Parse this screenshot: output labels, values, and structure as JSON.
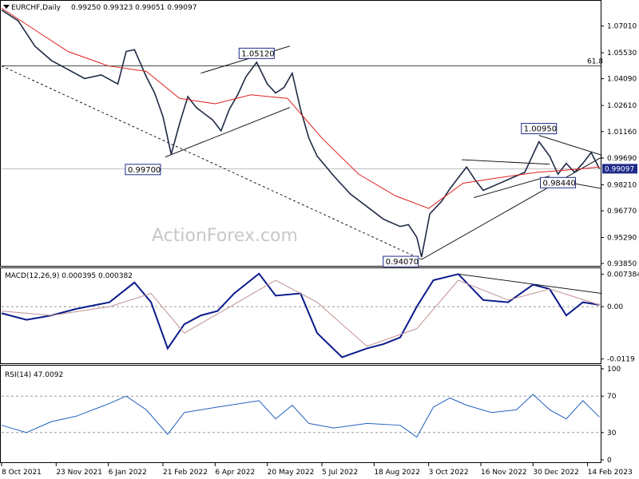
{
  "header": {
    "symbol": "EURCHF,Daily",
    "ohlc": "0.99250 0.99323 0.99051 0.99097"
  },
  "watermark": "ActionForex.com",
  "colors": {
    "price": "#1f2a44",
    "sma": "#e02020",
    "macd": "#0a1a8a",
    "signal": "#c09090",
    "rsi": "#2060c0",
    "last_box": "#1f2a8a"
  },
  "chart_data": [
    {
      "type": "line",
      "panel": "price",
      "ylim": [
        0.9385,
        1.081
      ],
      "y_ticks": [
        "1.07010",
        "1.05530",
        "1.04090",
        "1.02610",
        "1.01160",
        "0.99690",
        "0.98210",
        "0.96770",
        "0.95290",
        "0.93850"
      ],
      "x_tick_labels": [
        "8 Oct 2021",
        "23 Nov 2021",
        "6 Jan 2022",
        "21 Feb 2022",
        "6 Apr 2022",
        "20 May 2022",
        "5 Jul 2022",
        "18 Aug 2022",
        "3 Oct 2022",
        "16 Nov 2022",
        "30 Dec 2022",
        "14 Feb 2023"
      ],
      "horizontal_line": {
        "value": 1.048,
        "label": "61.8"
      },
      "last_price_line": 0.991,
      "last_price_label": "0.99097",
      "annotations": [
        {
          "text": "1.05120",
          "x": "2022-05-11",
          "y": 1.0512
        },
        {
          "text": "0.99700",
          "x": "2022-02-23",
          "y": 0.997
        },
        {
          "text": "1.00950",
          "x": "2023-01-04",
          "y": 1.0095
        },
        {
          "text": "0.98440",
          "x": "2023-01-20",
          "y": 0.9844
        },
        {
          "text": "0.94070",
          "x": "2022-09-27",
          "y": 0.9407
        }
      ],
      "series": [
        {
          "x": [
            "2021-10-08",
            "2021-10-22",
            "2021-11-05",
            "2021-11-19",
            "2021-12-03",
            "2021-12-17",
            "2021-12-31",
            "2022-01-14",
            "2022-01-21",
            "2022-01-28",
            "2022-02-07",
            "2022-02-14",
            "2022-02-21",
            "2022-02-28",
            "2022-03-07",
            "2022-03-14",
            "2022-03-21",
            "2022-04-04",
            "2022-04-11",
            "2022-04-18",
            "2022-04-25",
            "2022-05-02",
            "2022-05-11",
            "2022-05-20",
            "2022-05-27",
            "2022-06-03",
            "2022-06-10",
            "2022-06-17",
            "2022-06-24",
            "2022-07-01",
            "2022-07-15",
            "2022-07-29",
            "2022-08-12",
            "2022-08-26",
            "2022-09-09",
            "2022-09-16",
            "2022-09-23",
            "2022-09-27",
            "2022-10-04",
            "2022-10-14",
            "2022-10-21",
            "2022-10-28",
            "2022-11-04",
            "2022-11-11",
            "2022-11-18",
            "2022-12-02",
            "2022-12-16",
            "2022-12-23",
            "2023-01-04",
            "2023-01-13",
            "2023-01-20",
            "2023-01-27",
            "2023-02-03",
            "2023-02-10",
            "2023-02-17",
            "2023-02-24"
          ],
          "y": [
            1.079,
            1.073,
            1.059,
            1.051,
            1.046,
            1.041,
            1.043,
            1.038,
            1.056,
            1.057,
            1.042,
            1.033,
            1.02,
            0.999,
            1.016,
            1.031,
            1.025,
            1.018,
            1.012,
            1.024,
            1.032,
            1.042,
            1.05,
            1.038,
            1.033,
            1.036,
            1.044,
            1.024,
            1.008,
            0.998,
            0.987,
            0.977,
            0.97,
            0.963,
            0.959,
            0.96,
            0.953,
            0.942,
            0.966,
            0.973,
            0.98,
            0.986,
            0.992,
            0.985,
            0.979,
            0.983,
            0.987,
            0.989,
            1.006,
            0.998,
            0.988,
            0.994,
            0.989,
            0.994,
            1.0,
            0.991
          ]
        },
        {
          "name": "SMA",
          "x": [
            "2021-10-08",
            "2021-11-05",
            "2021-12-03",
            "2022-01-06",
            "2022-02-07",
            "2022-03-07",
            "2022-04-06",
            "2022-05-06",
            "2022-06-06",
            "2022-07-05",
            "2022-08-05",
            "2022-09-05",
            "2022-10-03",
            "2022-11-01",
            "2022-12-01",
            "2023-01-02",
            "2023-02-01",
            "2023-02-24"
          ],
          "y": [
            1.08,
            1.068,
            1.056,
            1.048,
            1.045,
            1.03,
            1.027,
            1.032,
            1.03,
            1.008,
            0.988,
            0.976,
            0.969,
            0.983,
            0.986,
            0.989,
            0.9905,
            0.992
          ]
        }
      ]
    },
    {
      "type": "line",
      "panel": "macd",
      "title": "MACD(12,26,9) 0.000395 0.000382",
      "ylim": [
        -0.0125,
        0.008
      ],
      "y_ticks": [
        "0.007384",
        "0.00",
        "-0.0119"
      ],
      "series": [
        {
          "name": "MACD",
          "x": [
            "2021-10-08",
            "2021-10-29",
            "2021-11-19",
            "2021-12-10",
            "2022-01-07",
            "2022-01-28",
            "2022-02-11",
            "2022-02-25",
            "2022-03-11",
            "2022-03-25",
            "2022-04-08",
            "2022-04-22",
            "2022-05-13",
            "2022-05-27",
            "2022-06-17",
            "2022-07-01",
            "2022-07-22",
            "2022-08-12",
            "2022-08-26",
            "2022-09-09",
            "2022-09-23",
            "2022-10-07",
            "2022-10-28",
            "2022-11-18",
            "2022-12-09",
            "2022-12-30",
            "2023-01-13",
            "2023-01-27",
            "2023-02-10",
            "2023-02-24"
          ],
          "y": [
            -0.0015,
            -0.003,
            -0.002,
            -0.0005,
            0.001,
            0.0055,
            0.001,
            -0.0095,
            -0.004,
            -0.002,
            -0.001,
            0.003,
            0.0075,
            0.0025,
            0.003,
            -0.006,
            -0.0115,
            -0.0095,
            -0.0085,
            -0.007,
            0.0,
            0.006,
            0.0074,
            0.0015,
            0.001,
            0.005,
            0.004,
            -0.002,
            0.001,
            0.0004
          ]
        },
        {
          "name": "Signal",
          "x": [
            "2021-10-08",
            "2021-11-19",
            "2022-01-07",
            "2022-02-11",
            "2022-03-11",
            "2022-04-22",
            "2022-05-27",
            "2022-07-01",
            "2022-08-12",
            "2022-09-23",
            "2022-10-28",
            "2022-12-09",
            "2023-01-13",
            "2023-02-24"
          ],
          "y": [
            -0.001,
            -0.002,
            0.0,
            0.003,
            -0.006,
            0.0005,
            0.006,
            0.001,
            -0.009,
            -0.005,
            0.006,
            0.0015,
            0.004,
            0.0004
          ]
        }
      ]
    },
    {
      "type": "line",
      "panel": "rsi",
      "title": "RSI(14) 47.0092",
      "ylim": [
        0,
        100
      ],
      "y_ticks": [
        "100",
        "70",
        "30",
        "0"
      ],
      "levels": [
        70,
        30
      ],
      "series": [
        {
          "name": "RSI",
          "x": [
            "2021-10-08",
            "2021-10-29",
            "2021-11-19",
            "2021-12-10",
            "2022-01-07",
            "2022-01-21",
            "2022-02-07",
            "2022-02-25",
            "2022-03-11",
            "2022-04-08",
            "2022-05-13",
            "2022-05-27",
            "2022-06-10",
            "2022-06-24",
            "2022-07-15",
            "2022-08-12",
            "2022-09-09",
            "2022-09-23",
            "2022-10-07",
            "2022-10-21",
            "2022-11-04",
            "2022-11-25",
            "2022-12-16",
            "2022-12-30",
            "2023-01-13",
            "2023-01-27",
            "2023-02-10",
            "2023-02-24"
          ],
          "y": [
            38,
            30,
            42,
            48,
            62,
            70,
            55,
            28,
            52,
            58,
            65,
            45,
            60,
            40,
            35,
            40,
            38,
            25,
            58,
            68,
            60,
            52,
            55,
            72,
            55,
            45,
            65,
            47
          ]
        }
      ]
    }
  ]
}
